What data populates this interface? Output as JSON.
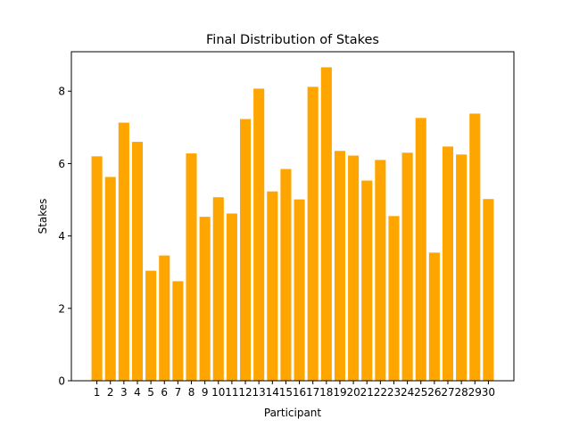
{
  "chart_data": {
    "type": "bar",
    "title": "Final Distribution of Stakes",
    "xlabel": "Participant",
    "ylabel": "Stakes",
    "categories": [
      "1",
      "2",
      "3",
      "4",
      "5",
      "6",
      "7",
      "8",
      "9",
      "10",
      "11",
      "12",
      "13",
      "14",
      "15",
      "16",
      "17",
      "18",
      "19",
      "20",
      "21",
      "22",
      "23",
      "24",
      "25",
      "26",
      "27",
      "28",
      "29",
      "30"
    ],
    "values": [
      6.2,
      5.63,
      7.13,
      6.6,
      3.04,
      3.46,
      2.75,
      6.28,
      4.53,
      5.07,
      4.62,
      7.23,
      8.07,
      5.23,
      5.85,
      5.01,
      8.12,
      8.66,
      6.35,
      6.22,
      5.53,
      6.1,
      4.55,
      6.3,
      7.26,
      3.54,
      6.47,
      6.25,
      7.38,
      5.02
    ],
    "yticks": [
      0,
      2,
      4,
      6,
      8
    ],
    "ylim": [
      0,
      9.09
    ],
    "grid": false,
    "colors": {
      "bar": "#ffa500",
      "axis": "#000000"
    }
  }
}
